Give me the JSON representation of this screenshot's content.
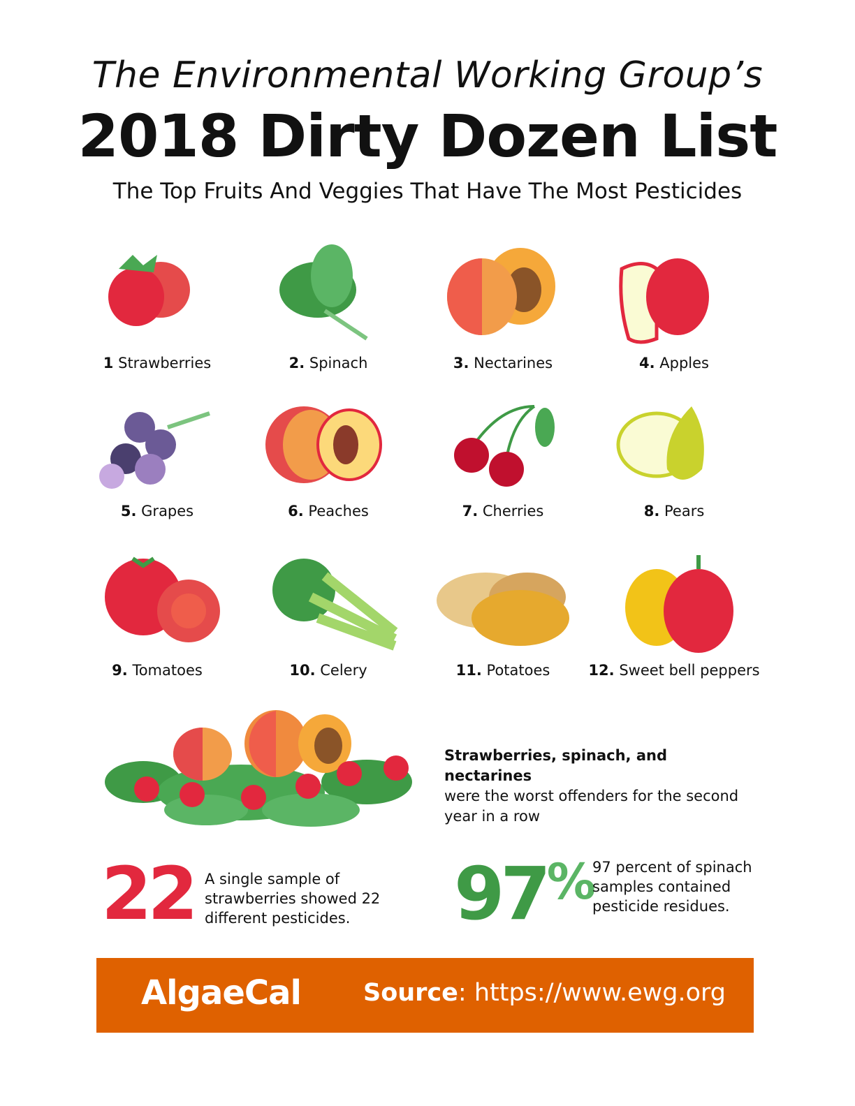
{
  "header": {
    "pretitle": "The Environmental Working Group’s",
    "title": "2018 Dirty Dozen List",
    "subtitle": "The Top Fruits And Veggies That Have The Most Pesticides"
  },
  "items": [
    {
      "rank": "1",
      "name": "Strawberries",
      "icon": "strawberry-icon"
    },
    {
      "rank": "2.",
      "name": "Spinach",
      "icon": "spinach-icon"
    },
    {
      "rank": "3.",
      "name": "Nectarines",
      "icon": "nectarine-icon"
    },
    {
      "rank": "4.",
      "name": "Apples",
      "icon": "apple-icon"
    },
    {
      "rank": "5.",
      "name": "Grapes",
      "icon": "grapes-icon"
    },
    {
      "rank": "6.",
      "name": "Peaches",
      "icon": "peach-icon"
    },
    {
      "rank": "7.",
      "name": "Cherries",
      "icon": "cherries-icon"
    },
    {
      "rank": "8.",
      "name": "Pears",
      "icon": "pear-icon"
    },
    {
      "rank": "9.",
      "name": "Tomatoes",
      "icon": "tomato-icon"
    },
    {
      "rank": "10.",
      "name": "Celery",
      "icon": "celery-icon"
    },
    {
      "rank": "11.",
      "name": "Potatoes",
      "icon": "potato-icon"
    },
    {
      "rank": "12.",
      "name": "Sweet bell peppers",
      "icon": "bell-pepper-icon"
    }
  ],
  "highlight": {
    "bold": "Strawberries, spinach, and nectarines",
    "text": "were the worst offenders for the second year in a row"
  },
  "stats": [
    {
      "number": "22",
      "text": "A single sample of strawberries showed 22 different pesticides.",
      "color": "#e2283e"
    },
    {
      "number": "97",
      "suffix": "%",
      "text": "97 percent of spinach samples contained pesticide residues.",
      "color": "#3f9a46"
    }
  ],
  "footer": {
    "logo": "AlgaeCal",
    "source_label": "Source",
    "source_url": ": https://www.ewg.org",
    "color": "#df6100"
  }
}
